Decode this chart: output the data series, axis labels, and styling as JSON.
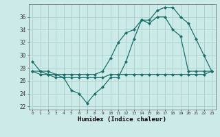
{
  "xlabel": "Humidex (Indice chaleur)",
  "background_color": "#cceae8",
  "grid_color": "#aad4d0",
  "line_color": "#1a6e6a",
  "hours": [
    0,
    1,
    2,
    3,
    4,
    5,
    6,
    7,
    8,
    9,
    10,
    11,
    12,
    13,
    14,
    15,
    16,
    17,
    18,
    19,
    20,
    21,
    22,
    23
  ],
  "line1": [
    29,
    27.5,
    27,
    27,
    26.5,
    24.5,
    24,
    22.5,
    24,
    25,
    26.5,
    26.5,
    29,
    32.5,
    35.5,
    35.5,
    37,
    37.5,
    37.5,
    36,
    35,
    32.5,
    30,
    27.5
  ],
  "line2": [
    27.5,
    27,
    27,
    26.5,
    26.5,
    26.5,
    26.5,
    26.5,
    26.5,
    26.5,
    27,
    27,
    27,
    27,
    27,
    27,
    27,
    27,
    27,
    27,
    27,
    27,
    27,
    27.5
  ],
  "line3": [
    27.5,
    27.5,
    27.5,
    27,
    27,
    27,
    27,
    27,
    27,
    27.5,
    29.5,
    32,
    33.5,
    34,
    35.5,
    35,
    36,
    36,
    34,
    33,
    27.5,
    27.5,
    27.5,
    27.5
  ],
  "ylim": [
    21.5,
    38
  ],
  "yticks": [
    22,
    24,
    26,
    28,
    30,
    32,
    34,
    36
  ],
  "xticks": [
    0,
    1,
    2,
    3,
    4,
    5,
    6,
    7,
    8,
    9,
    10,
    11,
    12,
    13,
    14,
    15,
    16,
    17,
    18,
    19,
    20,
    21,
    22,
    23
  ]
}
